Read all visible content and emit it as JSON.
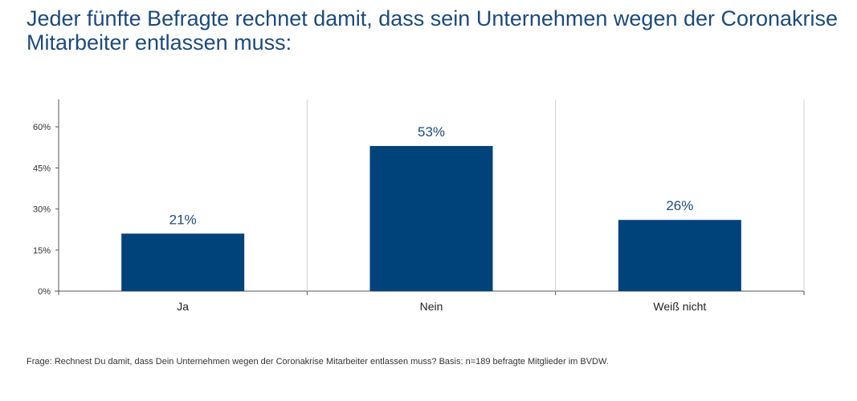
{
  "title": "Jeder fünfte Befragte rechnet damit, dass sein Unternehmen wegen der Coronakrise Mitarbeiter entlassen muss:",
  "footnote": "Frage: Rechnest Du damit, dass Dein Unternehmen wegen der Coronakrise Mitarbeiter entlassen muss? Basis: n=189 befragte Mitglieder im BVDW.",
  "colors": {
    "bar": "#00427a",
    "text": "#1d4a7c",
    "axis": "#555555",
    "divider": "#d0d0d0"
  },
  "chart_data": {
    "type": "bar",
    "categories": [
      "Ja",
      "Nein",
      "Weiß nicht"
    ],
    "values": [
      21,
      53,
      26
    ],
    "data_labels": [
      "21%",
      "53%",
      "26%"
    ],
    "yticks": [
      0,
      15,
      30,
      45,
      60
    ],
    "ytick_labels": [
      "0%",
      "15%",
      "30%",
      "45%",
      "60%"
    ],
    "ylim": [
      0,
      70
    ],
    "grid": false,
    "category_dividers": true
  }
}
